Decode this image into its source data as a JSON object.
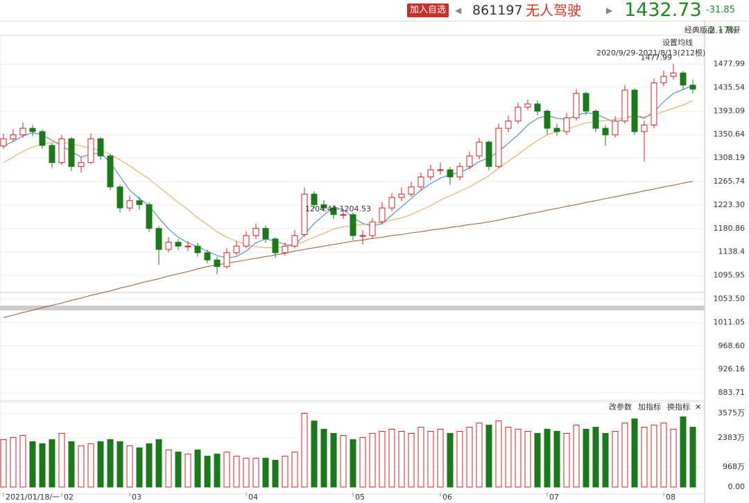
{
  "header": {
    "add_button": "加入自选",
    "code": "861197",
    "name": "无人驾驶",
    "price": "1432.73",
    "change": "-31.85",
    "change_pct": "-2.17%"
  },
  "toolbar": {
    "layout": "经典版面",
    "expand": "« 展开",
    "set_ma": "设置均线",
    "range": "2020/9/29-2021/8/13(212根)",
    "params": "改参数",
    "add_indicator": "加指标",
    "switch_indicator": "换指标"
  },
  "chart_data": {
    "type": "candlestick",
    "categories": [
      "2021/01/18/一",
      null,
      null,
      null,
      null,
      null,
      "02",
      null,
      null,
      null,
      null,
      null,
      null,
      "03",
      null,
      null,
      null,
      null,
      null,
      null,
      null,
      null,
      null,
      null,
      null,
      "04",
      null,
      null,
      null,
      null,
      null,
      null,
      null,
      null,
      null,
      null,
      "05",
      null,
      null,
      null,
      null,
      null,
      null,
      null,
      null,
      "06",
      null,
      null,
      null,
      null,
      null,
      null,
      null,
      null,
      null,
      null,
      "07",
      null,
      null,
      null,
      null,
      null,
      null,
      null,
      null,
      null,
      null,
      null,
      "08",
      null,
      null,
      null
    ],
    "ohlc": [
      [
        1330,
        1352,
        1325,
        1343
      ],
      [
        1343,
        1360,
        1338,
        1350
      ],
      [
        1350,
        1372,
        1345,
        1362
      ],
      [
        1362,
        1368,
        1348,
        1356
      ],
      [
        1356,
        1360,
        1325,
        1331
      ],
      [
        1331,
        1335,
        1290,
        1300
      ],
      [
        1300,
        1350,
        1296,
        1343
      ],
      [
        1343,
        1346,
        1285,
        1293
      ],
      [
        1293,
        1310,
        1282,
        1300
      ],
      [
        1300,
        1352,
        1298,
        1343
      ],
      [
        1343,
        1346,
        1305,
        1312
      ],
      [
        1312,
        1315,
        1250,
        1256
      ],
      [
        1256,
        1260,
        1210,
        1218
      ],
      [
        1218,
        1240,
        1212,
        1231
      ],
      [
        1231,
        1238,
        1215,
        1224
      ],
      [
        1224,
        1228,
        1175,
        1181
      ],
      [
        1181,
        1185,
        1115,
        1143
      ],
      [
        1143,
        1165,
        1138,
        1156
      ],
      [
        1156,
        1162,
        1142,
        1149
      ],
      [
        1149,
        1158,
        1140,
        1149
      ],
      [
        1149,
        1155,
        1130,
        1137
      ],
      [
        1137,
        1142,
        1118,
        1124
      ],
      [
        1124,
        1130,
        1098,
        1112
      ],
      [
        1112,
        1146,
        1108,
        1137
      ],
      [
        1137,
        1158,
        1132,
        1149
      ],
      [
        1149,
        1176,
        1145,
        1168
      ],
      [
        1168,
        1190,
        1162,
        1181
      ],
      [
        1181,
        1186,
        1155,
        1162
      ],
      [
        1162,
        1165,
        1128,
        1137
      ],
      [
        1137,
        1156,
        1132,
        1149
      ],
      [
        1149,
        1178,
        1145,
        1168
      ],
      [
        1170,
        1255,
        1165,
        1243
      ],
      [
        1243,
        1248,
        1218,
        1224
      ],
      [
        1224,
        1232,
        1212,
        1218
      ],
      [
        1218,
        1224,
        1198,
        1206
      ],
      [
        1206,
        1215,
        1198,
        1206
      ],
      [
        1206,
        1210,
        1160,
        1168
      ],
      [
        1168,
        1178,
        1152,
        1168
      ],
      [
        1168,
        1200,
        1162,
        1193
      ],
      [
        1193,
        1228,
        1188,
        1218
      ],
      [
        1218,
        1245,
        1212,
        1237
      ],
      [
        1237,
        1255,
        1230,
        1243
      ],
      [
        1243,
        1265,
        1238,
        1256
      ],
      [
        1256,
        1282,
        1250,
        1274
      ],
      [
        1274,
        1296,
        1268,
        1287
      ],
      [
        1287,
        1300,
        1278,
        1287
      ],
      [
        1287,
        1292,
        1260,
        1274
      ],
      [
        1274,
        1300,
        1268,
        1293
      ],
      [
        1293,
        1320,
        1288,
        1312
      ],
      [
        1312,
        1345,
        1306,
        1337
      ],
      [
        1337,
        1340,
        1286,
        1293
      ],
      [
        1293,
        1370,
        1290,
        1362
      ],
      [
        1362,
        1385,
        1355,
        1375
      ],
      [
        1375,
        1408,
        1370,
        1400
      ],
      [
        1400,
        1414,
        1395,
        1406
      ],
      [
        1406,
        1412,
        1386,
        1393
      ],
      [
        1393,
        1396,
        1350,
        1362
      ],
      [
        1362,
        1370,
        1348,
        1356
      ],
      [
        1356,
        1390,
        1350,
        1381
      ],
      [
        1381,
        1433,
        1376,
        1425
      ],
      [
        1425,
        1428,
        1386,
        1393
      ],
      [
        1393,
        1396,
        1355,
        1362
      ],
      [
        1362,
        1368,
        1330,
        1350
      ],
      [
        1350,
        1384,
        1345,
        1375
      ],
      [
        1375,
        1440,
        1370,
        1431
      ],
      [
        1431,
        1434,
        1350,
        1356
      ],
      [
        1356,
        1376,
        1302,
        1368
      ],
      [
        1368,
        1452,
        1362,
        1444
      ],
      [
        1444,
        1466,
        1438,
        1456
      ],
      [
        1456,
        1477.99,
        1450,
        1462
      ],
      [
        1462,
        1466,
        1432,
        1440
      ],
      [
        1440,
        1450,
        1425,
        1432.73
      ]
    ],
    "series": [
      {
        "name": "MA5",
        "color": "#3b7ddd",
        "values": [
          1330,
          1338,
          1348,
          1354,
          1350,
          1340,
          1330,
          1320,
          1310,
          1315,
          1318,
          1300,
          1275,
          1250,
          1235,
          1222,
          1200,
          1180,
          1165,
          1155,
          1148,
          1140,
          1132,
          1128,
          1130,
          1140,
          1155,
          1162,
          1158,
          1152,
          1150,
          1170,
          1190,
          1205,
          1220,
          1215,
          1200,
          1190,
          1185,
          1190,
          1205,
          1220,
          1235,
          1250,
          1262,
          1272,
          1278,
          1282,
          1290,
          1302,
          1308,
          1320,
          1335,
          1350,
          1368,
          1380,
          1385,
          1380,
          1378,
          1385,
          1390,
          1388,
          1380,
          1372,
          1380,
          1385,
          1380,
          1392,
          1410,
          1425,
          1432,
          1440
        ]
      },
      {
        "name": "MA20",
        "color": "#f0a050",
        "values": [
          1300,
          1310,
          1320,
          1328,
          1334,
          1336,
          1336,
          1334,
          1330,
          1326,
          1322,
          1315,
          1305,
          1294,
          1282,
          1270,
          1256,
          1242,
          1228,
          1215,
          1200,
          1188,
          1175,
          1165,
          1158,
          1152,
          1148,
          1146,
          1146,
          1148,
          1150,
          1158,
          1165,
          1172,
          1180,
          1184,
          1186,
          1188,
          1190,
          1192,
          1196,
          1200,
          1206,
          1214,
          1222,
          1232,
          1240,
          1248,
          1256,
          1266,
          1276,
          1290,
          1302,
          1315,
          1328,
          1340,
          1350,
          1356,
          1360,
          1366,
          1372,
          1374,
          1376,
          1378,
          1382,
          1384,
          1383,
          1386,
          1392,
          1398,
          1404,
          1412
        ]
      },
      {
        "name": "MA250",
        "color": "#9a5a2a",
        "values": [
          1020,
          1024,
          1029,
          1033,
          1038,
          1042,
          1046,
          1051,
          1055,
          1060,
          1064,
          1068,
          1073,
          1077,
          1082,
          1086,
          1090,
          1095,
          1099,
          1103,
          1108,
          1112,
          1115,
          1118,
          1121,
          1124,
          1127,
          1130,
          1133,
          1136,
          1140,
          1143,
          1146,
          1149,
          1152,
          1155,
          1158,
          1160,
          1163,
          1165,
          1168,
          1170,
          1173,
          1175,
          1178,
          1180,
          1183,
          1185,
          1188,
          1190,
          1193,
          1196,
          1200,
          1203,
          1207,
          1210,
          1214,
          1217,
          1221,
          1224,
          1228,
          1231,
          1235,
          1238,
          1242,
          1245,
          1249,
          1252,
          1256,
          1259,
          1263,
          1266
        ]
      }
    ],
    "up_color": "#d62020",
    "down_color": "#1a7a1a",
    "ylim": [
      870,
      1525
    ],
    "yticks": [
      1477.99,
      1435.54,
      1393.09,
      1350.64,
      1308.19,
      1265.74,
      {
        "value": 1223.3,
        "label": "1223.30"
      },
      1180.86,
      1138.4,
      1095.95,
      {
        "value": 1053.5,
        "label": "1053.50"
      },
      1011.05,
      {
        "value": 968.6,
        "label": "968.60"
      },
      926.16,
      883.71
    ],
    "annotations": [
      {
        "text": "1477.99",
        "index": 69,
        "value": 1477.99
      },
      {
        "text": "1204.44-1204.53",
        "index": 38,
        "value": 1204.5
      }
    ],
    "volume": {
      "values": [
        2300,
        2400,
        2500,
        2200,
        2100,
        2300,
        2600,
        2200,
        2000,
        2100,
        2200,
        2300,
        2200,
        2000,
        1900,
        2100,
        2300,
        1800,
        1700,
        1600,
        1800,
        1500,
        1600,
        1700,
        1500,
        1400,
        1400,
        1400,
        1300,
        1500,
        1700,
        3575,
        3200,
        2800,
        2600,
        2500,
        2300,
        2400,
        2600,
        2700,
        2800,
        2700,
        2600,
        2900,
        2700,
        2800,
        2600,
        2700,
        2900,
        3100,
        3000,
        3200,
        2900,
        2800,
        2700,
        2600,
        2800,
        2700,
        2600,
        3000,
        2800,
        2900,
        2600,
        2700,
        3100,
        3300,
        2900,
        3000,
        3100,
        2800,
        3400,
        2900
      ],
      "ylim": [
        0,
        3790
      ],
      "yticks": [
        {
          "value": 3575,
          "label": "3575万"
        },
        {
          "value": 2383,
          "label": "2383万"
        },
        {
          "value": 968,
          "label": "968万"
        },
        {
          "value": 0,
          "label": "0.00"
        }
      ]
    }
  }
}
